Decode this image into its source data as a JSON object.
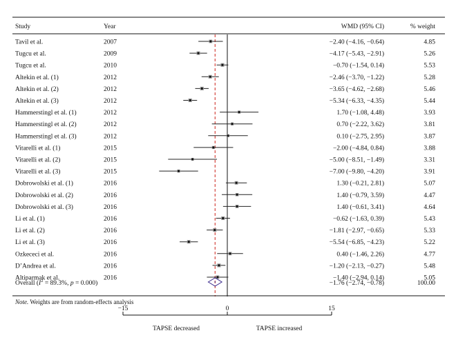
{
  "chart_data": {
    "type": "forest",
    "columns": {
      "study": "Study",
      "year": "Year",
      "ci": "WMD (95% CI)",
      "weight": "% weight"
    },
    "rows": [
      {
        "study": "Tavil et al.",
        "year": "2007",
        "wmd": -2.4,
        "lo": -4.16,
        "hi": -0.64,
        "ci_text": "−2.40 (−4.16, −0.64)",
        "weight": "4.85"
      },
      {
        "study": "Tugcu et al.",
        "year": "2009",
        "wmd": -4.17,
        "lo": -5.43,
        "hi": -2.91,
        "ci_text": "−4.17 (−5.43, −2.91)",
        "weight": "5.26"
      },
      {
        "study": "Tugcu et al.",
        "year": "2010",
        "wmd": -0.7,
        "lo": -1.54,
        "hi": 0.14,
        "ci_text": "−0.70 (−1.54, 0.14)",
        "weight": "5.53"
      },
      {
        "study": "Altekin et al. (1)",
        "year": "2012",
        "wmd": -2.46,
        "lo": -3.7,
        "hi": -1.22,
        "ci_text": "−2.46 (−3.70, −1.22)",
        "weight": "5.28"
      },
      {
        "study": "Altekin et al. (2)",
        "year": "2012",
        "wmd": -3.65,
        "lo": -4.62,
        "hi": -2.68,
        "ci_text": "−3.65 (−4.62, −2.68)",
        "weight": "5.46"
      },
      {
        "study": "Altekin et al. (3)",
        "year": "2012",
        "wmd": -5.34,
        "lo": -6.33,
        "hi": -4.35,
        "ci_text": "−5.34 (−6.33, −4.35)",
        "weight": "5.44"
      },
      {
        "study": "Hammerstingl et al. (1)",
        "year": "2012",
        "wmd": 1.7,
        "lo": -1.08,
        "hi": 4.48,
        "ci_text": "1.70 (−1.08, 4.48)",
        "weight": "3.93"
      },
      {
        "study": "Hammerstingl et al. (2)",
        "year": "2012",
        "wmd": 0.7,
        "lo": -2.22,
        "hi": 3.62,
        "ci_text": "0.70 (−2.22, 3.62)",
        "weight": "3.81"
      },
      {
        "study": "Hammerstingl et al. (3)",
        "year": "2012",
        "wmd": 0.1,
        "lo": -2.75,
        "hi": 2.95,
        "ci_text": "0.10 (−2.75, 2.95)",
        "weight": "3.87"
      },
      {
        "study": "Vitarelli et al. (1)",
        "year": "2015",
        "wmd": -2.0,
        "lo": -4.84,
        "hi": 0.84,
        "ci_text": "−2.00 (−4.84, 0.84)",
        "weight": "3.88"
      },
      {
        "study": "Vitarelli et al. (2)",
        "year": "2015",
        "wmd": -5.0,
        "lo": -8.51,
        "hi": -1.49,
        "ci_text": "−5.00 (−8.51, −1.49)",
        "weight": "3.31"
      },
      {
        "study": "Vitarelli et al. (3)",
        "year": "2015",
        "wmd": -7.0,
        "lo": -9.8,
        "hi": -4.2,
        "ci_text": "−7.00 (−9.80, −4.20)",
        "weight": "3.91"
      },
      {
        "study": "Dobrowolski et al. (1)",
        "year": "2016",
        "wmd": 1.3,
        "lo": -0.21,
        "hi": 2.81,
        "ci_text": "1.30 (−0.21, 2.81)",
        "weight": "5.07"
      },
      {
        "study": "Dobrowolski et al. (2)",
        "year": "2016",
        "wmd": 1.4,
        "lo": -0.79,
        "hi": 3.59,
        "ci_text": "1.40 (−0.79, 3.59)",
        "weight": "4.47"
      },
      {
        "study": "Dobrowolski et al. (3)",
        "year": "2016",
        "wmd": 1.4,
        "lo": -0.61,
        "hi": 3.41,
        "ci_text": "1.40 (−0.61, 3.41)",
        "weight": "4.64"
      },
      {
        "study": "Li et al. (1)",
        "year": "2016",
        "wmd": -0.62,
        "lo": -1.63,
        "hi": 0.39,
        "ci_text": "−0.62 (−1.63, 0.39)",
        "weight": "5.43"
      },
      {
        "study": "Li et al. (2)",
        "year": "2016",
        "wmd": -1.81,
        "lo": -2.97,
        "hi": -0.65,
        "ci_text": "−1.81 (−2.97, −0.65)",
        "weight": "5.33"
      },
      {
        "study": "Li et al. (3)",
        "year": "2016",
        "wmd": -5.54,
        "lo": -6.85,
        "hi": -4.23,
        "ci_text": "−5.54 (−6.85, −4.23)",
        "weight": "5.22"
      },
      {
        "study": "Ozkececi et al.",
        "year": "2016",
        "wmd": 0.4,
        "lo": -1.46,
        "hi": 2.26,
        "ci_text": "0.40 (−1.46, 2.26)",
        "weight": "4.77"
      },
      {
        "study": "D’Andrea et al.",
        "year": "2016",
        "wmd": -1.2,
        "lo": -2.13,
        "hi": -0.27,
        "ci_text": "−1.20 (−2.13, −0.27)",
        "weight": "5.48"
      },
      {
        "study": "Altiparmak et al.",
        "year": "2016",
        "wmd": -1.4,
        "lo": -2.94,
        "hi": 0.14,
        "ci_text": "−1.40 (−2.94, 0.14)",
        "weight": "5.05"
      }
    ],
    "overall": {
      "label_prefix": "Overall (",
      "i2_symbol": "I",
      "i2_sup": "2",
      "i2_rest": " = 89.3%, ",
      "p_symbol": "p",
      "p_rest": " = 0.000)",
      "wmd": -1.76,
      "lo": -2.74,
      "hi": -0.78,
      "ci_text": "−1.76 (−2.74, −0.78)",
      "weight": "100.00"
    },
    "note_label": "Note.",
    "note_text": " Weights are from random-effects analysis",
    "xlim": [
      -15,
      15
    ],
    "ticks": [
      -15,
      0,
      15
    ],
    "tick_labels": [
      "−15",
      "0",
      "15"
    ],
    "left_label": "TAPSE decreased",
    "right_label": "TAPSE increased",
    "null_line": 0,
    "colors": {
      "ci_line": "#222222",
      "box": "#9a9a9a",
      "point": "#111111",
      "overall_line": "#d0342c",
      "diamond": "#3a2a8c",
      "rule": "#111111"
    }
  }
}
